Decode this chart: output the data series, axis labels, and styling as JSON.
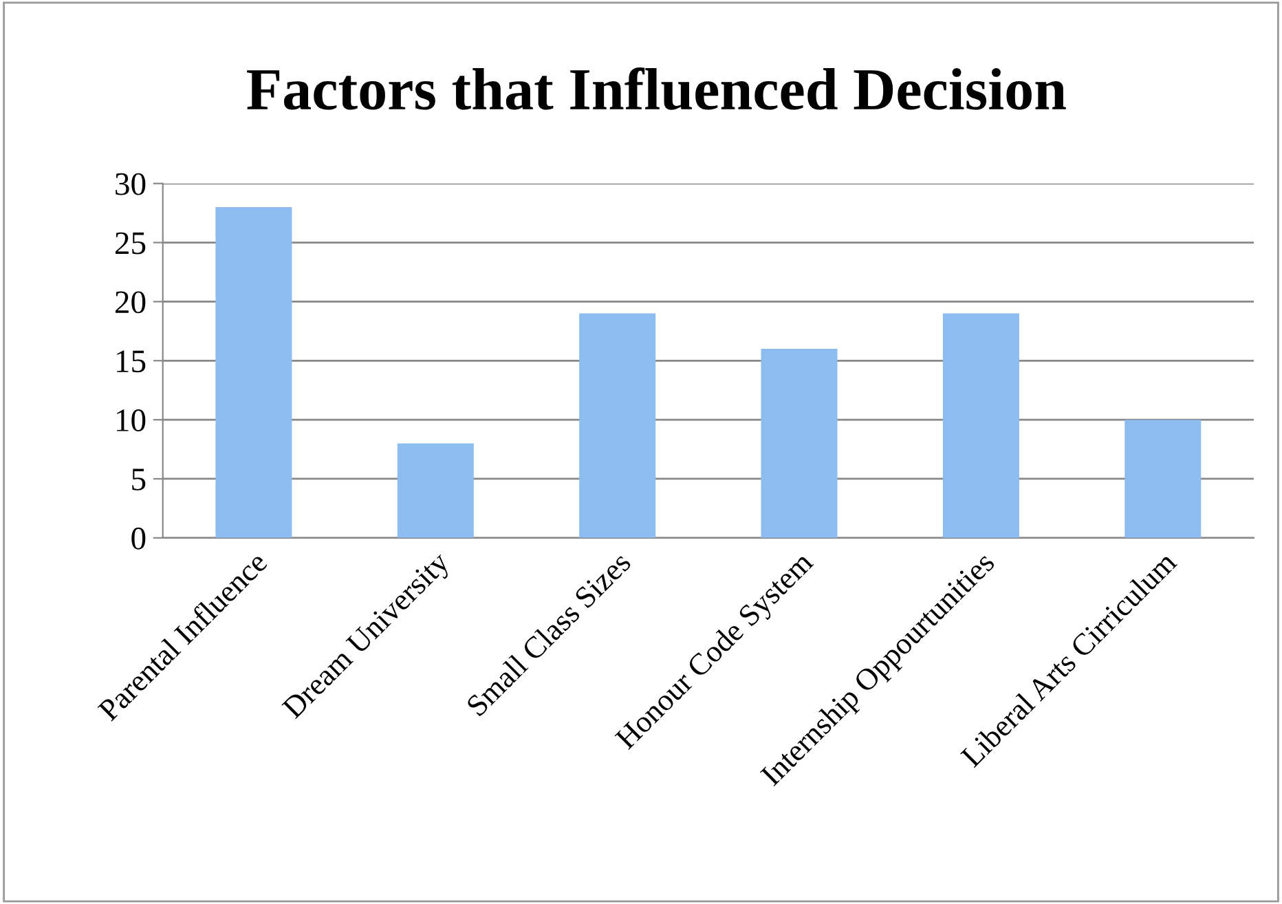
{
  "chart_data": {
    "type": "bar",
    "title": "Factors that Influenced Decision",
    "categories": [
      "Parental Influence",
      "Dream University",
      "Small Class Sizes",
      "Honour Code System",
      "Internship Oppourtunities",
      "Liberal Arts Cirriculum"
    ],
    "values": [
      28,
      8,
      19,
      16,
      19,
      10
    ],
    "color": "#8dbdf0",
    "ylim": [
      0,
      30
    ],
    "yticks": [
      0,
      5,
      10,
      15,
      20,
      25,
      30
    ],
    "grid": "y",
    "legend": false
  }
}
